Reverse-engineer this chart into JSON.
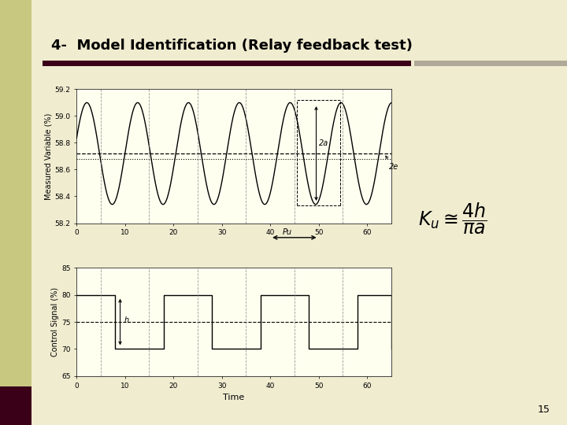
{
  "title": "4-  Model Identification (Relay feedback test)",
  "bg_color": "#f0ecd0",
  "plot_bg": "#fffff0",
  "sidebar_color": "#c8c880",
  "sidebar_dark": "#3a0018",
  "header_line_color": "#3a0018",
  "gray_bar_color": "#b0a898",
  "page_number": "15",
  "top_ax": {
    "ylabel": "Measured Variable (%)",
    "ylim": [
      58.2,
      59.2
    ],
    "yticks": [
      58.2,
      58.4,
      58.6,
      58.8,
      59.0,
      59.2
    ],
    "xlim": [
      0,
      65
    ],
    "xticks": [
      0,
      10,
      20,
      30,
      40,
      50,
      60
    ],
    "mean_val": 58.72,
    "dotted_val": 58.68,
    "amplitude": 0.38,
    "period": 10.5,
    "phase": 0.3,
    "dashed_vlines": [
      5,
      15,
      25,
      35,
      45,
      55,
      65
    ]
  },
  "bot_ax": {
    "ylabel": "Control Signal (%)",
    "xlabel": "Time",
    "ylim": [
      65,
      85
    ],
    "yticks": [
      65,
      70,
      75,
      80,
      85
    ],
    "xlim": [
      0,
      65
    ],
    "xticks": [
      0,
      10,
      20,
      30,
      40,
      50,
      60
    ],
    "setpoint": 75,
    "high_val": 80,
    "low_val": 70,
    "switch_times": [
      0,
      8,
      18,
      28,
      38,
      48,
      58,
      65
    ],
    "dashed_vlines": [
      5,
      15,
      25,
      35,
      45,
      55,
      65
    ]
  }
}
